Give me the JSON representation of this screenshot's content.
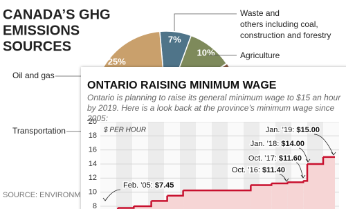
{
  "chart_data": [
    {
      "type": "pie",
      "title": [
        "CANADA’S GHG",
        "EMISSIONS",
        "SOURCES"
      ],
      "categories": [
        "Waste and others including coal, construction and forestry",
        "Agriculture",
        "Oil and gas"
      ],
      "values": [
        7,
        10,
        25
      ],
      "value_labels": [
        "7%",
        "10%",
        "25%"
      ],
      "colors": [
        "#4f7489",
        "#7e8a5b",
        "#c9a06c"
      ],
      "annotations": [
        "Transportation"
      ],
      "source": "SOURCE: ENVIRONMENT"
    },
    {
      "type": "line",
      "title": "ONTARIO RAISING MINIMUM WAGE",
      "subtitle": "Ontario is planning to raise its general minimum wage to $15 an hour by 2019. Here is a look back at the province’s minimum wage since 2005:",
      "ylabel": "$ PER HOUR",
      "step": true,
      "color": "#c8102e",
      "fill": "#f6d5d5",
      "x": [
        2005.1,
        2006.1,
        2007.1,
        2008.2,
        2009.2,
        2010.2,
        2014.45,
        2015.75,
        2016.75,
        2017.75,
        2018.0,
        2019.0
      ],
      "values": [
        7.45,
        7.75,
        8.0,
        8.75,
        9.5,
        10.25,
        11.0,
        11.25,
        11.4,
        11.6,
        14.0,
        15.0
      ],
      "point_labels": [
        "Feb. ’05:",
        null,
        null,
        null,
        null,
        null,
        null,
        null,
        "Oct. ’16:",
        "Oct. ’17:",
        "Jan. ’18:",
        "Jan. ’19:"
      ],
      "value_labels": [
        "$7.45",
        null,
        null,
        null,
        null,
        null,
        null,
        null,
        "$11.40",
        "$11.60",
        "$14.00",
        "$15.00"
      ],
      "xlim": [
        2005,
        2020
      ],
      "ylim": [
        8,
        20
      ],
      "yticks": [
        8,
        10,
        12,
        14,
        16,
        18,
        20
      ],
      "grid": true
    }
  ]
}
